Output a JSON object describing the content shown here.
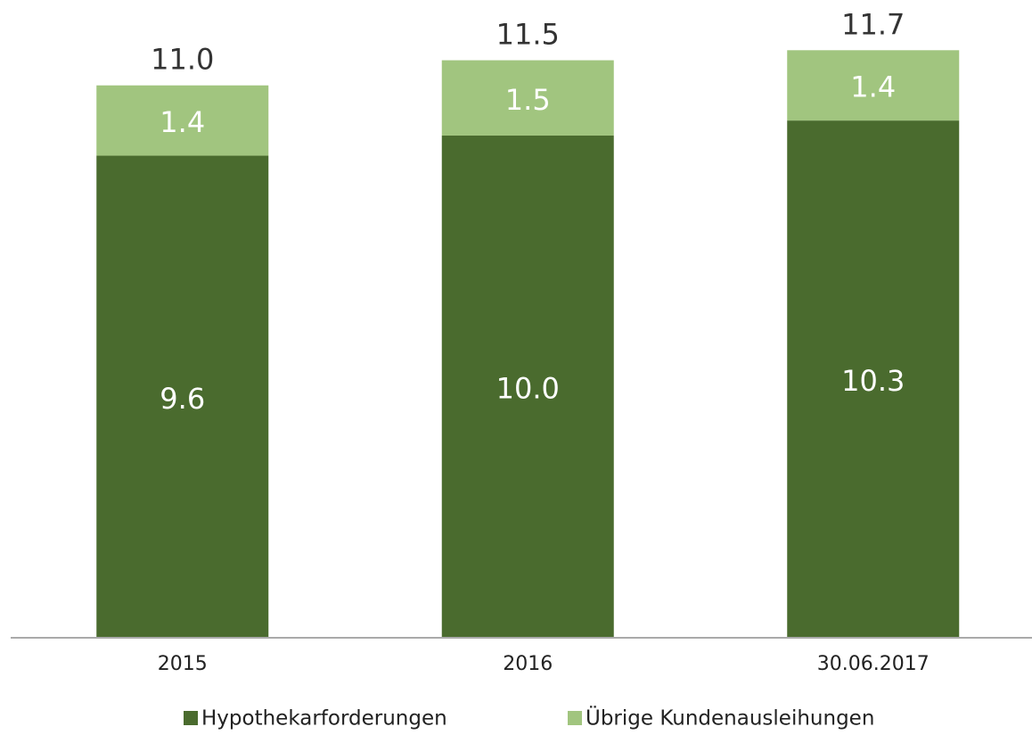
{
  "chart_data": {
    "type": "stacked_bar",
    "categories": [
      "2015",
      "2016",
      "30.06.2017"
    ],
    "series": [
      {
        "name": "Hypothekarforderungen",
        "color": "#4a6b2e",
        "values": [
          9.6,
          10.0,
          10.3
        ],
        "value_labels": [
          "9.6",
          "10.0",
          "10.3"
        ]
      },
      {
        "name": "Übrige Kundenausleihungen",
        "color": "#a1c57f",
        "values": [
          1.4,
          1.5,
          1.4
        ],
        "value_labels": [
          "1.4",
          "1.5",
          "1.4"
        ]
      }
    ],
    "totals": [
      11.0,
      11.5,
      11.7
    ],
    "total_labels": [
      "11.0",
      "11.5",
      "11.7"
    ],
    "ylim": [
      0,
      12.7
    ],
    "legend": "bottom"
  }
}
